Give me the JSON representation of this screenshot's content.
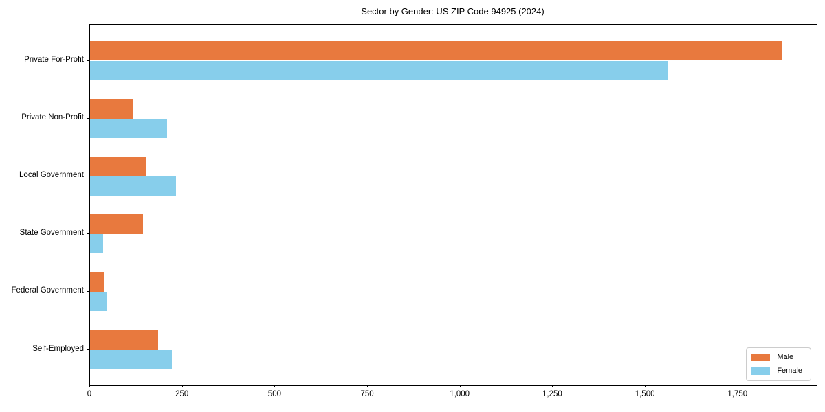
{
  "chart_data": {
    "type": "bar",
    "orientation": "horizontal",
    "title": "Sector by Gender: US ZIP Code 94925 (2024)",
    "categories": [
      "Private For-Profit",
      "Private Non-Profit",
      "Local Government",
      "State Government",
      "Federal Government",
      "Self-Employed"
    ],
    "series": [
      {
        "name": "Male",
        "color": "#e8793e",
        "values": [
          1870,
          116,
          152,
          142,
          37,
          184
        ]
      },
      {
        "name": "Female",
        "color": "#87ceeb",
        "values": [
          1560,
          208,
          232,
          36,
          45,
          221
        ]
      }
    ],
    "xlabel": "",
    "ylabel": "",
    "xlim": [
      0,
      1962
    ],
    "xticks": {
      "values": [
        0,
        250,
        500,
        750,
        1000,
        1250,
        1500,
        1750
      ],
      "labels": [
        "0",
        "250",
        "500",
        "750",
        "1,000",
        "1,250",
        "1,500",
        "1,750"
      ]
    },
    "grid": false,
    "legend": {
      "position": "lower-right",
      "entries": [
        "Male",
        "Female"
      ]
    },
    "colors": {
      "spine": "#000000",
      "text": "#000000",
      "legend_border": "#cccccc",
      "background": "#ffffff"
    }
  }
}
